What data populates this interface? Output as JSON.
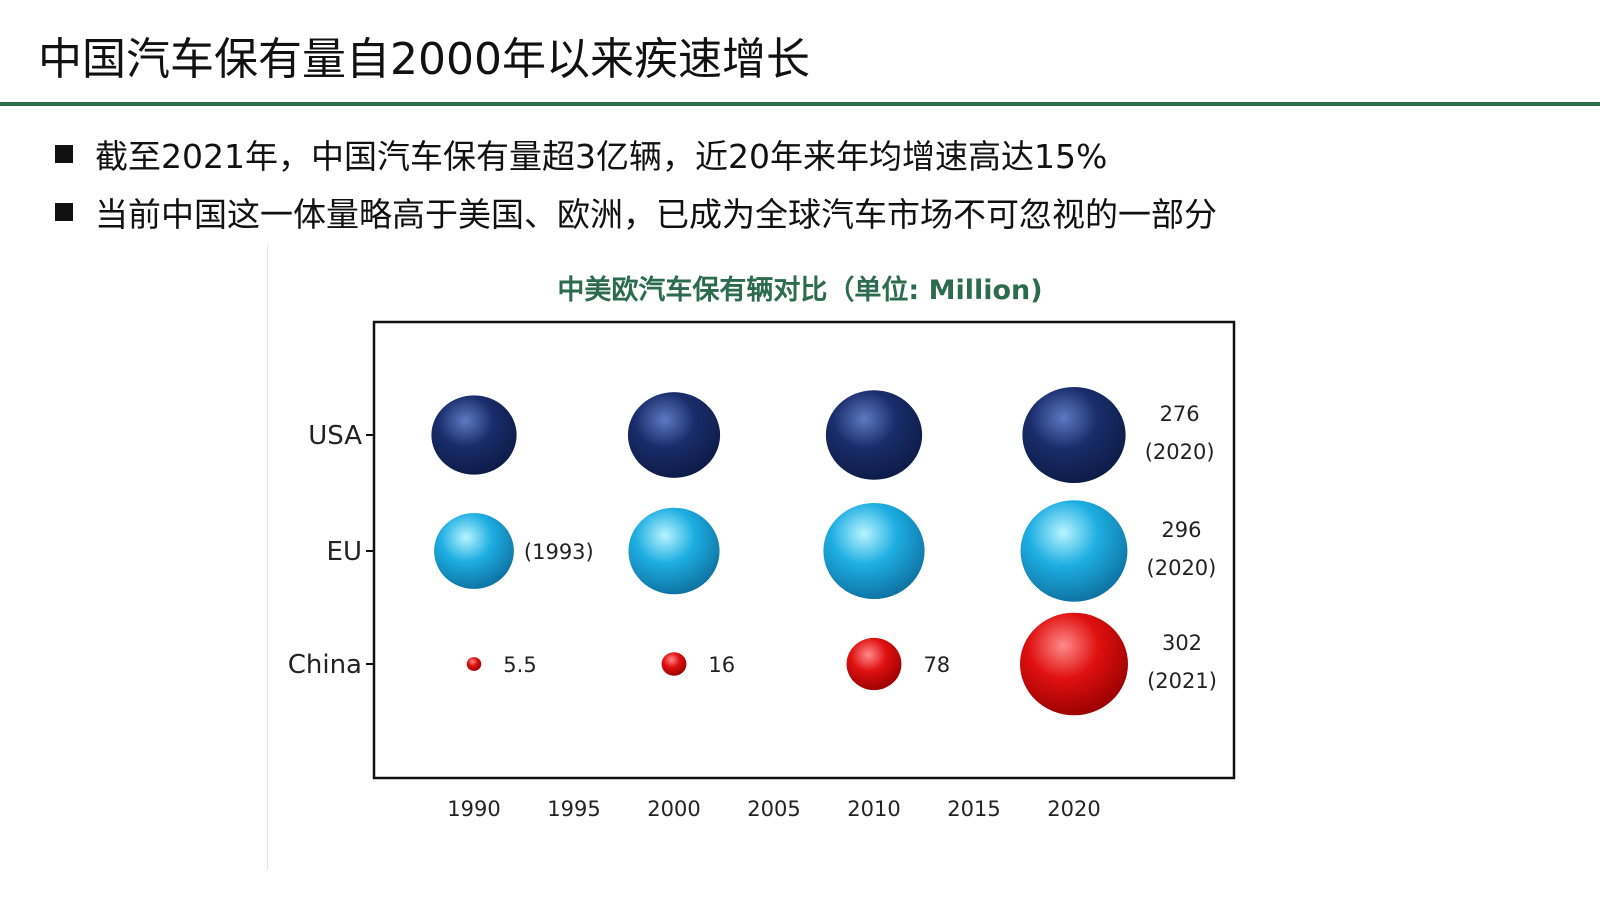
{
  "slide": {
    "title": "中国汽车保有量自2000年以来疾速增长",
    "bullets": [
      "截至2021年，中国汽车保有量超3亿辆，近20年来年均增速高达15%",
      "当前中国这一体量略高于美国、欧洲，已成为全球汽车市场不可忽视的一部分"
    ],
    "colors": {
      "accent": "#2c6b4e"
    }
  },
  "chart_data": {
    "type": "scatter",
    "title": "中美欧汽车保有辆对比（单位: Million)",
    "x_ticks": [
      "1990",
      "1995",
      "2000",
      "2005",
      "2010",
      "2015",
      "2020"
    ],
    "xlim": [
      1985,
      2028
    ],
    "categories": [
      "USA",
      "EU",
      "China"
    ],
    "grid": false,
    "series": [
      {
        "name": "USA",
        "color": "#1a2d6b",
        "points": [
          {
            "x": 1990,
            "size": 188
          },
          {
            "x": 2000,
            "size": 220
          },
          {
            "x": 2010,
            "size": 240
          },
          {
            "x": 2020,
            "size": 276,
            "value_label": "276",
            "year_label": "(2020)"
          }
        ]
      },
      {
        "name": "EU",
        "color": "#1eaee2",
        "points": [
          {
            "x": 1990,
            "size": 165,
            "year_label": "(1993)"
          },
          {
            "x": 2000,
            "size": 215
          },
          {
            "x": 2010,
            "size": 265
          },
          {
            "x": 2020,
            "size": 296,
            "value_label": "296",
            "year_label": "(2020)"
          }
        ]
      },
      {
        "name": "China",
        "color": "#e01010",
        "points": [
          {
            "x": 1990,
            "size": 5.5,
            "value_label": "5.5"
          },
          {
            "x": 2000,
            "size": 16,
            "value_label": "16"
          },
          {
            "x": 2010,
            "size": 78,
            "value_label": "78"
          },
          {
            "x": 2020,
            "size": 302,
            "value_label": "302",
            "year_label": "(2021)"
          }
        ]
      }
    ]
  }
}
